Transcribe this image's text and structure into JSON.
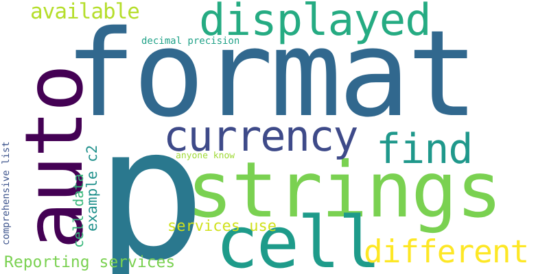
{
  "word_cloud": {
    "background": "#ffffff",
    "words": [
      {
        "key": "format",
        "text": "format",
        "color": "#31688e",
        "orientation": "horizontal"
      },
      {
        "key": "p",
        "text": "p",
        "color": "#2a788e",
        "orientation": "horizontal"
      },
      {
        "key": "strings",
        "text": "strings",
        "color": "#7ad151",
        "orientation": "horizontal"
      },
      {
        "key": "auto",
        "text": "auto",
        "color": "#440154",
        "orientation": "vertical"
      },
      {
        "key": "cell",
        "text": "cell",
        "color": "#1e9b8a",
        "orientation": "horizontal"
      },
      {
        "key": "displayed",
        "text": "displayed",
        "color": "#25ab82",
        "orientation": "horizontal"
      },
      {
        "key": "currency",
        "text": "currency",
        "color": "#3e4a89",
        "orientation": "horizontal"
      },
      {
        "key": "find",
        "text": "find",
        "color": "#1f988b",
        "orientation": "horizontal"
      },
      {
        "key": "different",
        "text": "different",
        "color": "#fde725",
        "orientation": "horizontal"
      },
      {
        "key": "available",
        "text": "available",
        "color": "#b5de2b",
        "orientation": "horizontal"
      },
      {
        "key": "reporting_services",
        "text": "Reporting services",
        "color": "#7ad151",
        "orientation": "horizontal"
      },
      {
        "key": "services_use",
        "text": "services use",
        "color": "#d0e11c",
        "orientation": "horizontal"
      },
      {
        "key": "example_c2",
        "text": "example c2",
        "color": "#21918c",
        "orientation": "vertical"
      },
      {
        "key": "cell_data",
        "text": "cell data",
        "color": "#35b779",
        "orientation": "vertical"
      },
      {
        "key": "decimal_precision",
        "text": "decimal precision",
        "color": "#1fa187",
        "orientation": "horizontal"
      },
      {
        "key": "anyone_know",
        "text": "anyone know",
        "color": "#a0da39",
        "orientation": "horizontal"
      },
      {
        "key": "comprehensive_list",
        "text": "comprehensive list",
        "color": "#3b528b",
        "orientation": "vertical"
      }
    ]
  }
}
